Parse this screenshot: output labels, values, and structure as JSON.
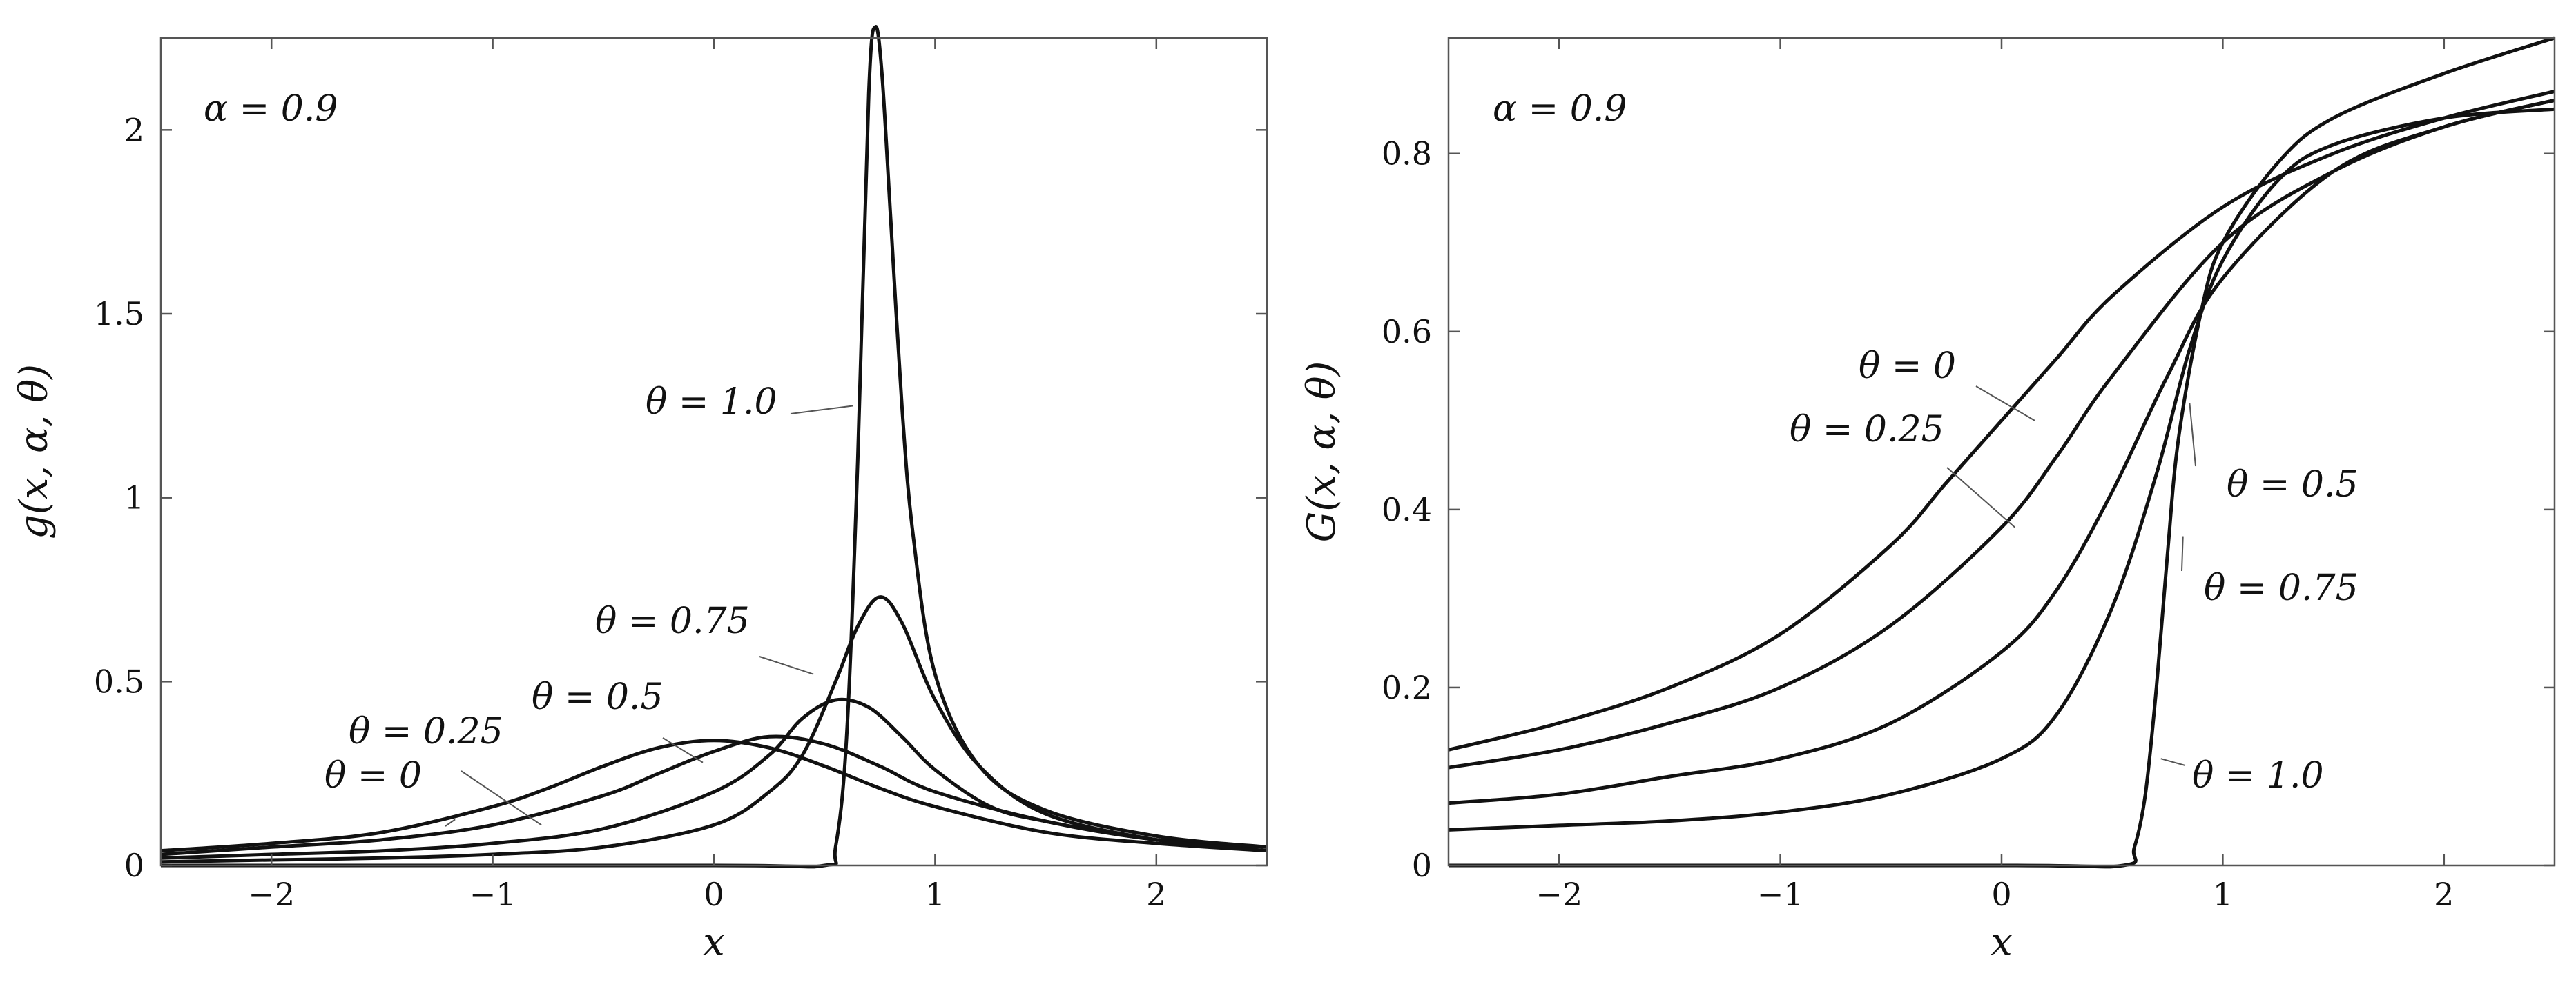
{
  "chart_data": [
    {
      "type": "line",
      "xlabel": "x",
      "ylabel": "g(x, α, θ)",
      "xlim": [
        -2.5,
        2.5
      ],
      "ylim": [
        0,
        2.25
      ],
      "xticks": [
        -2,
        -1,
        0,
        1,
        2
      ],
      "xtick_labels": [
        "−2",
        "−1",
        "0",
        "1",
        "2"
      ],
      "yticks": [
        0,
        0.5,
        1,
        1.5,
        2
      ],
      "ytick_labels": [
        "0",
        "0.5",
        "1",
        "1.5",
        "2"
      ],
      "grid": false,
      "annotation": "α = 0.9",
      "series": [
        {
          "name": "θ = 0",
          "x": [
            -2.5,
            -2,
            -1.5,
            -1,
            -0.75,
            -0.5,
            -0.25,
            0,
            0.25,
            0.5,
            0.75,
            1,
            1.5,
            2,
            2.5
          ],
          "y": [
            0.04,
            0.06,
            0.09,
            0.16,
            0.21,
            0.27,
            0.32,
            0.34,
            0.32,
            0.27,
            0.21,
            0.16,
            0.09,
            0.06,
            0.04
          ]
        },
        {
          "name": "θ = 0.25",
          "x": [
            -2.5,
            -2,
            -1.5,
            -1,
            -0.5,
            -0.25,
            0,
            0.25,
            0.5,
            0.75,
            1,
            1.5,
            2,
            2.5
          ],
          "y": [
            0.03,
            0.05,
            0.07,
            0.11,
            0.19,
            0.25,
            0.31,
            0.35,
            0.33,
            0.27,
            0.2,
            0.12,
            0.07,
            0.05
          ]
        },
        {
          "name": "θ = 0.5",
          "x": [
            -2.5,
            -2,
            -1.5,
            -1,
            -0.5,
            0,
            0.25,
            0.4,
            0.55,
            0.7,
            0.85,
            1,
            1.25,
            1.5,
            2,
            2.5
          ],
          "y": [
            0.02,
            0.03,
            0.04,
            0.06,
            0.1,
            0.2,
            0.3,
            0.4,
            0.45,
            0.43,
            0.35,
            0.26,
            0.16,
            0.12,
            0.07,
            0.05
          ]
        },
        {
          "name": "θ = 0.75",
          "x": [
            -2.5,
            -2,
            -1.5,
            -1,
            -0.5,
            0,
            0.25,
            0.4,
            0.55,
            0.65,
            0.75,
            0.85,
            1,
            1.2,
            1.5,
            2,
            2.5
          ],
          "y": [
            0.01,
            0.015,
            0.02,
            0.03,
            0.05,
            0.11,
            0.2,
            0.3,
            0.5,
            0.65,
            0.73,
            0.66,
            0.45,
            0.27,
            0.14,
            0.07,
            0.04
          ]
        },
        {
          "name": "θ = 1.0",
          "x": [
            -2.5,
            0,
            0.5,
            0.55,
            0.6,
            0.65,
            0.7,
            0.73,
            0.76,
            0.8,
            0.85,
            0.9,
            1,
            1.2,
            1.5,
            2,
            2.5
          ],
          "y": [
            0,
            0,
            0,
            0.05,
            0.35,
            1.1,
            2.1,
            2.28,
            2.15,
            1.75,
            1.25,
            0.9,
            0.52,
            0.27,
            0.15,
            0.08,
            0.05
          ]
        }
      ]
    },
    {
      "type": "line",
      "xlabel": "x",
      "ylabel": "G(x, α, θ)",
      "xlim": [
        -2.5,
        2.5
      ],
      "ylim": [
        0,
        0.93
      ],
      "xticks": [
        -2,
        -1,
        0,
        1,
        2
      ],
      "xtick_labels": [
        "−2",
        "−1",
        "0",
        "1",
        "2"
      ],
      "yticks": [
        0,
        0.2,
        0.4,
        0.6,
        0.8
      ],
      "ytick_labels": [
        "0",
        "0.2",
        "0.4",
        "0.6",
        "0.8"
      ],
      "grid": false,
      "annotation": "α = 0.9",
      "series": [
        {
          "name": "θ = 0",
          "x": [
            -2.5,
            -2,
            -1.5,
            -1,
            -0.5,
            -0.25,
            0,
            0.25,
            0.5,
            1,
            1.5,
            2,
            2.5
          ],
          "y": [
            0.13,
            0.16,
            0.2,
            0.26,
            0.36,
            0.43,
            0.5,
            0.57,
            0.64,
            0.74,
            0.8,
            0.84,
            0.87
          ]
        },
        {
          "name": "θ = 0.25",
          "x": [
            -2.5,
            -2,
            -1.5,
            -1,
            -0.5,
            0,
            0.25,
            0.5,
            1,
            1.5,
            2,
            2.5
          ],
          "y": [
            0.11,
            0.13,
            0.16,
            0.2,
            0.27,
            0.38,
            0.46,
            0.55,
            0.7,
            0.78,
            0.83,
            0.86
          ]
        },
        {
          "name": "θ = 0.5",
          "x": [
            -2.5,
            -2,
            -1.5,
            -1,
            -0.5,
            0,
            0.25,
            0.5,
            0.75,
            1,
            1.5,
            2,
            2.5
          ],
          "y": [
            0.07,
            0.08,
            0.1,
            0.12,
            0.16,
            0.24,
            0.31,
            0.42,
            0.55,
            0.66,
            0.78,
            0.83,
            0.86
          ]
        },
        {
          "name": "θ = 0.75",
          "x": [
            -2.5,
            -2,
            -1.5,
            -1,
            -0.5,
            0,
            0.25,
            0.5,
            0.7,
            0.85,
            1,
            1.25,
            1.5,
            2,
            2.5
          ],
          "y": [
            0.04,
            0.045,
            0.05,
            0.06,
            0.08,
            0.12,
            0.17,
            0.29,
            0.44,
            0.58,
            0.68,
            0.77,
            0.81,
            0.84,
            0.85
          ]
        },
        {
          "name": "θ = 1.0",
          "x": [
            -2.5,
            0,
            0.55,
            0.6,
            0.65,
            0.7,
            0.75,
            0.8,
            0.9,
            1,
            1.25,
            1.5,
            2,
            2.5
          ],
          "y": [
            0,
            0,
            0,
            0.02,
            0.08,
            0.2,
            0.35,
            0.48,
            0.62,
            0.7,
            0.79,
            0.84,
            0.89,
            0.93
          ]
        }
      ]
    }
  ]
}
